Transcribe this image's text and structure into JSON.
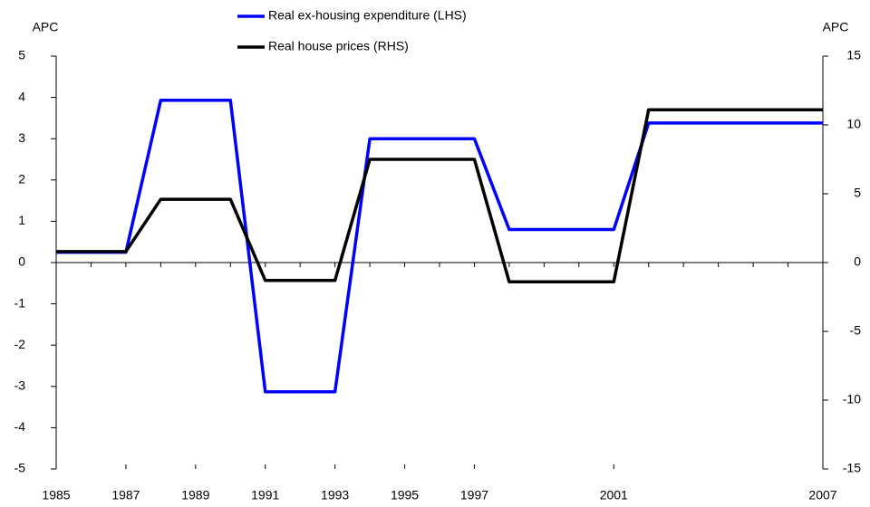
{
  "chart_data": {
    "type": "line",
    "y_label": "APC",
    "y2_label": "APC",
    "x": [
      1985,
      1986,
      1987,
      1988,
      1989,
      1990,
      1991,
      1992,
      1993,
      1994,
      1995,
      1996,
      1997,
      1998,
      1999,
      2000,
      2001,
      2002,
      2003,
      2004,
      2005,
      2006,
      2007
    ],
    "series": [
      {
        "name": "Real ex-housing expenditure (LHS)",
        "color": "#0000ff",
        "values": [
          0.25,
          0.25,
          0.25,
          3.93,
          3.93,
          3.93,
          -3.13,
          -3.13,
          -3.13,
          3.0,
          3.0,
          3.0,
          3.0,
          0.8,
          0.8,
          0.8,
          0.8,
          3.38,
          3.38,
          3.38,
          3.38,
          3.38,
          3.38
        ]
      },
      {
        "name": "Real house prices (RHS)",
        "color": "#000000",
        "axis": "y2",
        "values": [
          0.8,
          0.8,
          0.8,
          4.6,
          4.6,
          4.6,
          -1.3,
          -1.3,
          -1.3,
          7.5,
          7.5,
          7.5,
          7.5,
          -1.4,
          -1.4,
          -1.4,
          -1.4,
          11.1,
          11.1,
          11.1,
          11.1,
          11.1,
          11.1
        ]
      }
    ],
    "xlim": [
      1985,
      2007
    ],
    "xticks": [
      1985,
      1987,
      1989,
      1991,
      1993,
      1995,
      1997,
      2001,
      2007
    ],
    "ylim": [
      -5,
      5
    ],
    "yticks": [
      -5,
      -4,
      -3,
      -2,
      -1,
      0,
      1,
      2,
      3,
      4,
      5
    ],
    "y2lim": [
      -15,
      15
    ],
    "y2ticks": [
      -15,
      -10,
      -5,
      0,
      5,
      10,
      15
    ],
    "grid": false
  }
}
